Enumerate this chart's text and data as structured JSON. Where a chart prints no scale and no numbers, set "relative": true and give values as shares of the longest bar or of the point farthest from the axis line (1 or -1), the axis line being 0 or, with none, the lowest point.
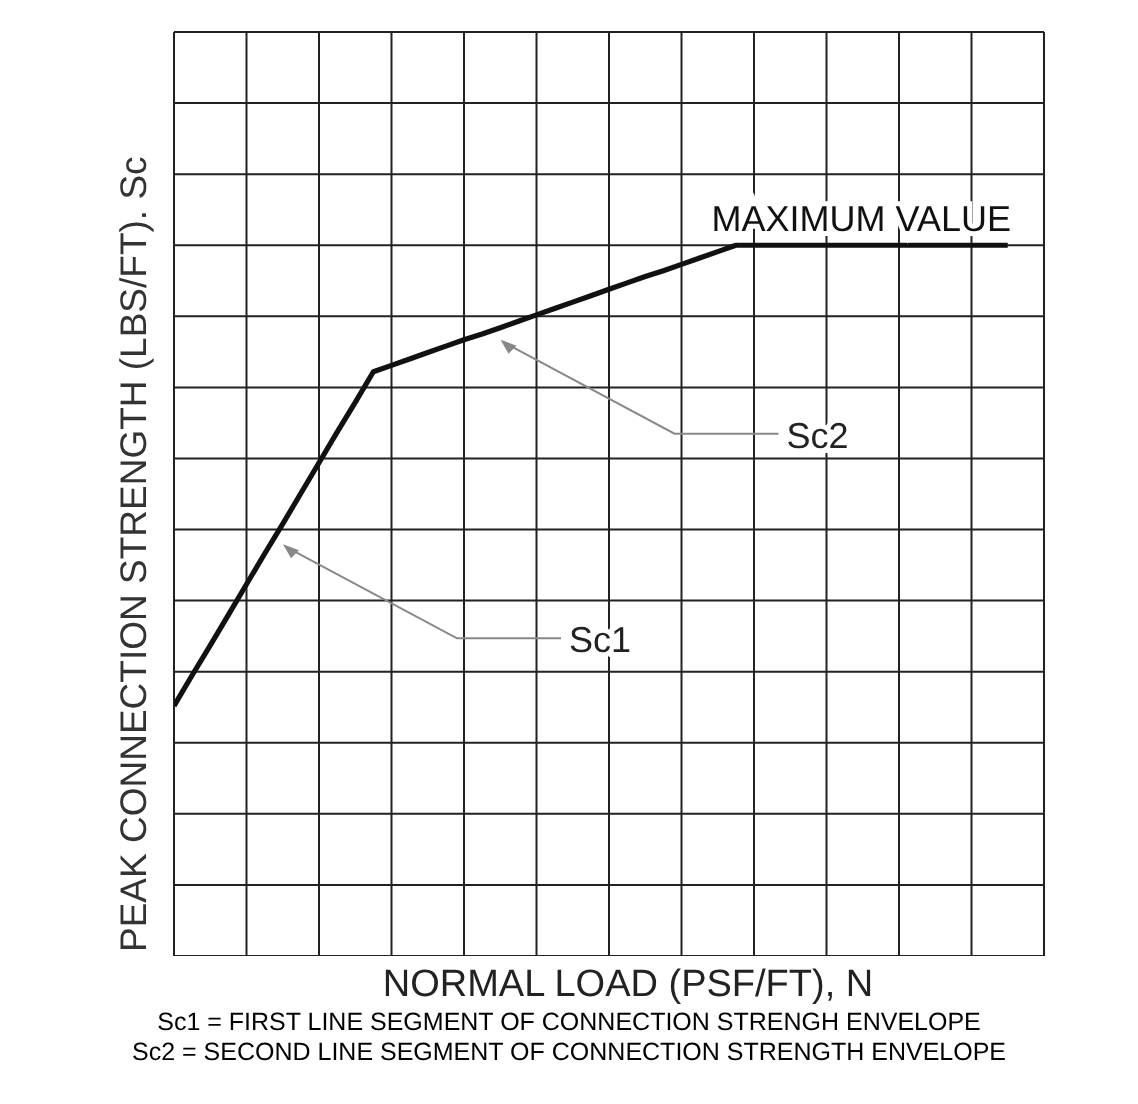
{
  "chart_data": {
    "type": "line",
    "relative": true,
    "xlabel": "NORMAL LOAD (PSF/FT), N",
    "ylabel": "PEAK CONNECTION STRENGTH (LBS/FT). Sc",
    "categories": [
      null,
      null,
      null,
      null,
      null,
      null,
      null,
      null,
      null,
      null,
      null,
      null,
      null,
      null,
      null,
      null,
      null,
      null,
      null,
      null,
      null,
      null,
      null,
      null,
      null,
      null,
      null,
      null,
      null,
      null,
      null,
      null,
      null,
      null,
      null,
      null,
      null,
      null,
      null,
      null,
      null,
      null,
      null,
      null,
      null,
      null,
      null,
      null,
      null
    ],
    "series": [
      {
        "color": "#111111",
        "values": [
          0.352,
          0.395,
          0.437,
          0.48,
          0.523,
          0.566,
          0.608,
          0.651,
          0.694,
          0.737,
          0.779,
          0.822,
          0.831,
          0.84,
          0.849,
          0.858,
          0.867,
          0.875,
          0.884,
          0.893,
          0.902,
          0.911,
          0.92,
          0.929,
          0.938,
          0.947,
          0.956,
          0.964,
          0.973,
          0.982,
          0.991,
          1,
          1,
          1,
          1,
          1,
          1,
          1,
          1,
          1,
          1,
          1,
          1,
          1,
          1,
          1,
          1,
          null,
          null
        ]
      }
    ],
    "marker": "none",
    "line_style": "solid",
    "grid": true,
    "annotations": [
      "MAXIMUM VALUE",
      "Sc2",
      "Sc1",
      "Sc1 = FIRST LINE SEGMENT OF CONNECTION STRENGH ENVELOPE",
      "Sc2 = SECOND LINE SEGMENT OF CONNECTION STRENGTH ENVELOPE"
    ]
  }
}
